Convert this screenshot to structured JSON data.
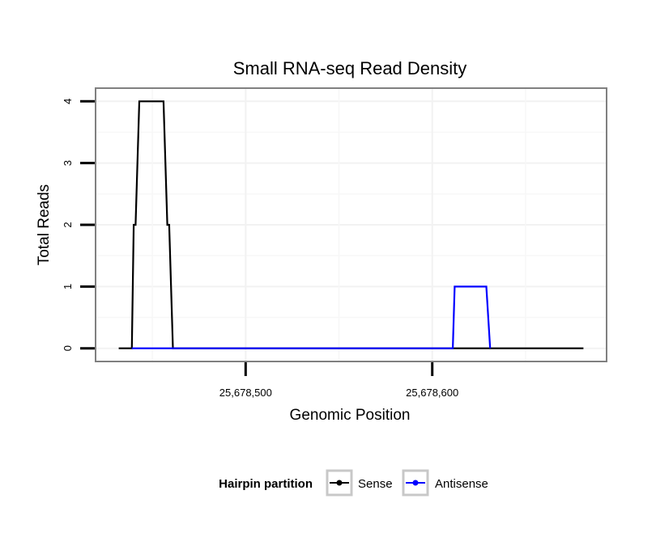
{
  "chart_data": {
    "type": "line",
    "title": "Small RNA-seq Read Density",
    "xlabel": "Genomic Position",
    "ylabel": "Total Reads",
    "xlim": [
      25678420,
      25678693
    ],
    "ylim": [
      -0.2,
      4.2
    ],
    "x_ticks": [
      25678500,
      25678600
    ],
    "x_tick_labels": [
      "25,678,500",
      "25,678,600"
    ],
    "y_ticks": [
      0,
      1,
      2,
      3,
      4
    ],
    "y_tick_labels": [
      "0",
      "1",
      "2",
      "3",
      "4"
    ],
    "grid": true,
    "legend": {
      "title": "Hairpin partition",
      "position": "bottom",
      "entries": [
        {
          "label": "Sense",
          "color": "#000000"
        },
        {
          "label": "Antisense",
          "color": "#0000ff"
        }
      ]
    },
    "series": [
      {
        "name": "Sense",
        "color": "#000000",
        "x": [
          25678432,
          25678439,
          25678440,
          25678441,
          25678443,
          25678456,
          25678458,
          25678459,
          25678461,
          25678681
        ],
        "values": [
          0,
          0,
          2,
          2,
          4,
          4,
          2,
          2,
          0,
          0
        ]
      },
      {
        "name": "Antisense",
        "color": "#0000ff",
        "x": [
          25678439,
          25678611,
          25678612,
          25678629,
          25678631
        ],
        "values": [
          0,
          0,
          1,
          1,
          0
        ]
      }
    ]
  }
}
